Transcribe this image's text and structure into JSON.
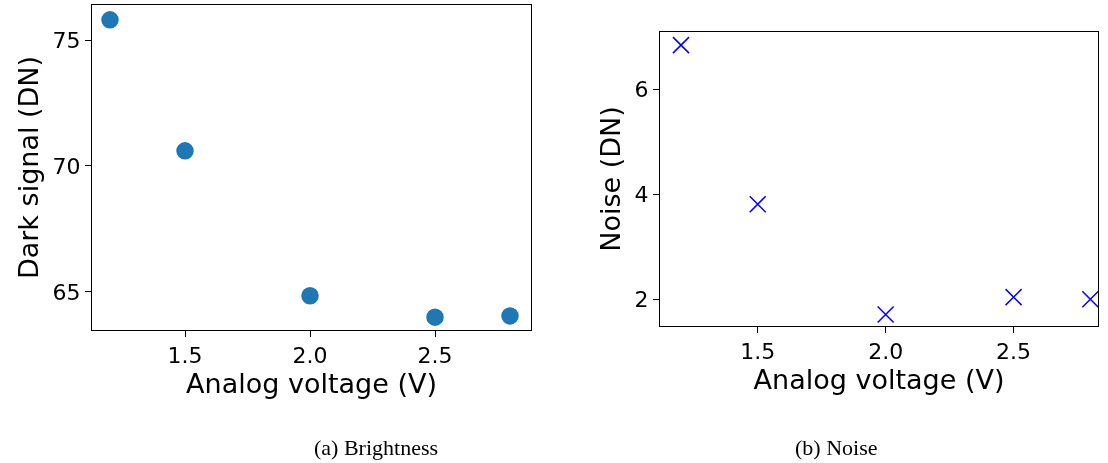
{
  "chart_data": [
    {
      "type": "scatter",
      "xlabel": "Analog voltage (V)",
      "ylabel": "Dark signal (DN)",
      "x": [
        1.2,
        1.5,
        2.0,
        2.5,
        2.8
      ],
      "series": [
        {
          "color": "#1f77b4",
          "values": [
            75.8,
            70.6,
            64.85,
            64.0,
            64.05
          ]
        }
      ],
      "marker": "circle",
      "xlim": [
        1.128,
        2.884
      ],
      "ylim": [
        63.49,
        76.39
      ],
      "xticks": [
        {
          "value": 1.5,
          "label": "1.5"
        },
        {
          "value": 2,
          "label": "2.0"
        },
        {
          "value": 2.5,
          "label": "2.5"
        }
      ],
      "yticks": [
        65,
        70,
        75
      ],
      "annotations": [
        "(a) Brightness"
      ]
    },
    {
      "type": "scatter",
      "xlabel": "Analog voltage (V)",
      "ylabel": "Noise (DN)",
      "x": [
        1.2,
        1.5,
        2.0,
        2.5,
        2.8
      ],
      "series": [
        {
          "color": "#0000ff",
          "values": [
            6.84,
            3.81,
            1.71,
            2.04,
            2.0
          ]
        }
      ],
      "marker": "cross",
      "xlim": [
        1.118,
        2.83
      ],
      "ylim": [
        1.49,
        7.09
      ],
      "xticks": [
        {
          "value": 1.5,
          "label": "1.5"
        },
        {
          "value": 2,
          "label": "2.0"
        },
        {
          "value": 2.5,
          "label": "2.5"
        }
      ],
      "yticks": [
        2,
        4,
        6
      ],
      "annotations": [
        "(b) Noise"
      ]
    }
  ]
}
